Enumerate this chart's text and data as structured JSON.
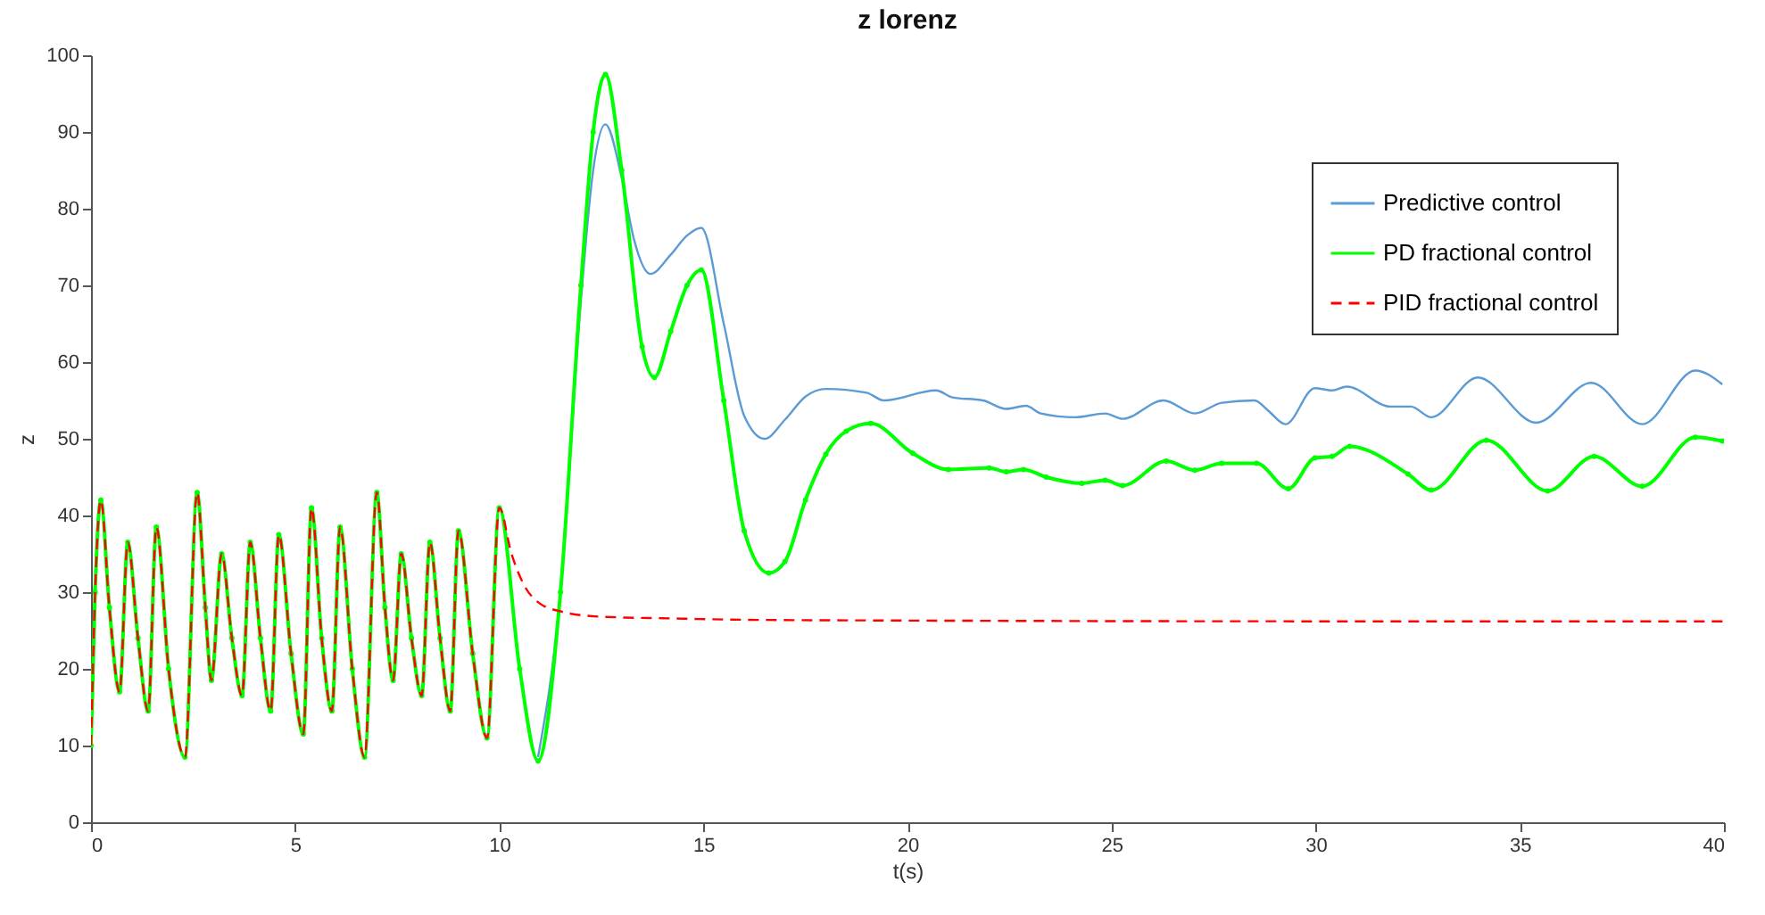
{
  "chart_data": {
    "type": "line",
    "title": "z lorenz",
    "xlabel": "t(s)",
    "ylabel": "z",
    "xlim": [
      0,
      40
    ],
    "xticks": [
      0,
      5,
      10,
      15,
      20,
      25,
      30,
      35,
      40
    ],
    "ylim": [
      0,
      100
    ],
    "yticks": [
      0,
      10,
      20,
      30,
      40,
      50,
      60,
      70,
      80,
      90,
      100
    ],
    "grid": false,
    "legend": "top right",
    "series": [
      {
        "name": "Predictive control",
        "color": "#5b9bd5",
        "line_style": "solid",
        "x": [
          10.95,
          11.5,
          12,
          12.3,
          12.6,
          13,
          13.3,
          13.7,
          14.2,
          14.6,
          14.95,
          15.5,
          16,
          16.5,
          17,
          17.5,
          18,
          19,
          19.42,
          20.7,
          21.1,
          21.85,
          22.42,
          22.9,
          23.27,
          24.1,
          24.84,
          25.27,
          26.27,
          27.04,
          27.7,
          28.5,
          28.83,
          29.26,
          29.98,
          30.4,
          30.76,
          31.83,
          32.33,
          32.83,
          33.97,
          35.4,
          36.75,
          38.0,
          39.3,
          39.96
        ],
        "values": [
          8.5,
          30,
          68,
          85,
          91,
          84,
          76,
          71.5,
          74,
          76.5,
          77.5,
          65,
          53,
          50,
          52.5,
          55.5,
          56.5,
          56,
          55.0,
          56.3,
          55.4,
          55.0,
          53.9,
          54.3,
          53.3,
          52.8,
          53.3,
          52.6,
          55.0,
          53.3,
          54.7,
          55.0,
          53.7,
          51.9,
          56.6,
          56.3,
          56.8,
          54.2,
          54.2,
          52.8,
          58.0,
          52.1,
          57.3,
          51.9,
          58.9,
          57.1
        ]
      },
      {
        "name": "PD fractional control",
        "color": "#00ff00",
        "line_style": "solid",
        "marker": "circle",
        "x": [
          0,
          0.1,
          0.24,
          0.45,
          0.7,
          0.9,
          1.15,
          1.4,
          1.6,
          1.9,
          2.3,
          2.6,
          2.8,
          2.95,
          3.2,
          3.45,
          3.7,
          3.9,
          4.15,
          4.4,
          4.6,
          4.9,
          5.2,
          5.4,
          5.65,
          5.9,
          6.1,
          6.4,
          6.7,
          7.0,
          7.2,
          7.4,
          7.6,
          7.85,
          8.1,
          8.3,
          8.55,
          8.8,
          9.0,
          9.35,
          9.7,
          10.0,
          10.5,
          10.95,
          11.5,
          12,
          12.3,
          12.6,
          13,
          13.5,
          13.8,
          14.2,
          14.6,
          14.95,
          15.5,
          16,
          16.6,
          17,
          17.5,
          18,
          18.5,
          19.1,
          20.13,
          21.0,
          22.0,
          22.42,
          22.84,
          23.4,
          24.27,
          24.84,
          25.27,
          26.34,
          27.04,
          27.7,
          28.55,
          29.33,
          29.98,
          30.4,
          30.83,
          32.26,
          32.83,
          34.18,
          35.68,
          36.82,
          38.0,
          39.3,
          39.96
        ],
        "values": [
          10,
          30,
          42,
          28,
          17,
          36.5,
          24,
          14.5,
          38.5,
          20,
          8.5,
          43,
          28,
          18.5,
          35,
          24,
          16.5,
          36.5,
          24,
          14.5,
          37.5,
          22,
          11.5,
          41,
          24,
          14.5,
          38.5,
          20,
          8.5,
          43,
          28,
          18.5,
          35,
          24,
          16.5,
          36.5,
          24,
          14.5,
          38,
          22,
          11,
          41,
          20,
          8,
          30,
          70,
          90,
          97.5,
          85,
          62,
          58,
          64,
          70,
          72,
          55,
          38,
          32.5,
          34,
          42,
          48,
          51,
          52,
          48.1,
          46.0,
          46.2,
          45.7,
          46.0,
          45.0,
          44.2,
          44.6,
          43.9,
          47.1,
          45.9,
          46.8,
          46.8,
          43.5,
          47.5,
          47.7,
          49.0,
          45.4,
          43.3,
          49.8,
          43.2,
          47.7,
          43.8,
          50.2,
          49.7
        ]
      },
      {
        "name": "PID fractional control",
        "color": "#ff0000",
        "line_style": "dashed",
        "x": [
          0,
          0.1,
          0.24,
          0.45,
          0.7,
          0.9,
          1.15,
          1.4,
          1.6,
          1.9,
          2.3,
          2.6,
          2.8,
          2.95,
          3.2,
          3.45,
          3.7,
          3.9,
          4.15,
          4.4,
          4.6,
          4.9,
          5.2,
          5.4,
          5.65,
          5.9,
          6.1,
          6.4,
          6.7,
          7.0,
          7.2,
          7.4,
          7.6,
          7.85,
          8.1,
          8.3,
          8.55,
          8.8,
          9.0,
          9.35,
          9.7,
          10.0,
          10.3,
          10.6,
          11,
          11.5,
          12,
          13,
          14,
          16,
          20,
          30,
          40
        ],
        "values": [
          10,
          30,
          42,
          28,
          17,
          36.5,
          24,
          14.5,
          38.5,
          20,
          8.5,
          43,
          28,
          18.5,
          35,
          24,
          16.5,
          36.5,
          24,
          14.5,
          37.5,
          22,
          11.5,
          41,
          24,
          14.5,
          38.5,
          20,
          8.5,
          43,
          28,
          18.5,
          35,
          24,
          16.5,
          36.5,
          24,
          14.5,
          38,
          22,
          11,
          41,
          35,
          31,
          28.5,
          27.5,
          27,
          26.7,
          26.6,
          26.4,
          26.3,
          26.2,
          26.2
        ]
      }
    ]
  }
}
